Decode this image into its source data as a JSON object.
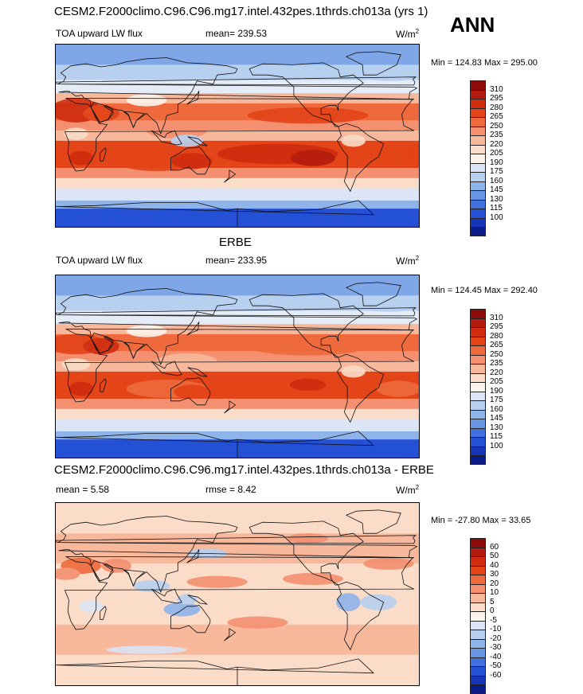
{
  "season": "ANN",
  "panels": [
    {
      "title": "CESM2.F2000climo.C96.C96.mg17.intel.432pes.1thrds.ch013a (yrs 1)",
      "left_label": "TOA upward LW flux",
      "center_label": "mean= 239.53",
      "units": "W/m",
      "units_sup": "2",
      "minmax": "Min = 124.83 Max = 295.00",
      "kind": "abs",
      "colorbar": {
        "levels": [
          "310",
          "295",
          "280",
          "265",
          "250",
          "235",
          "220",
          "205",
          "190",
          "175",
          "160",
          "145",
          "130",
          "115",
          "100"
        ],
        "colors": [
          "#8c0a0a",
          "#b31a0d",
          "#d02c10",
          "#e34418",
          "#ee6a3c",
          "#f49070",
          "#f7b89c",
          "#fadcc8",
          "#fcf3ea",
          "#dbe5f5",
          "#b8d0f0",
          "#8fb4ea",
          "#6895e4",
          "#4070dd",
          "#2450d6",
          "#1534b8",
          "#0c1a8a"
        ]
      }
    },
    {
      "title": "ERBE",
      "left_label": "TOA upward LW flux",
      "center_label": "mean= 233.95",
      "units": "W/m",
      "units_sup": "2",
      "minmax": "Min = 124.45 Max = 292.40",
      "kind": "abs",
      "colorbar": {
        "levels": [
          "310",
          "295",
          "280",
          "265",
          "250",
          "235",
          "220",
          "205",
          "190",
          "175",
          "160",
          "145",
          "130",
          "115",
          "100"
        ],
        "colors": [
          "#8c0a0a",
          "#b31a0d",
          "#d02c10",
          "#e34418",
          "#ee6a3c",
          "#f49070",
          "#f7b89c",
          "#fadcc8",
          "#fcf3ea",
          "#dbe5f5",
          "#b8d0f0",
          "#8fb4ea",
          "#6895e4",
          "#4070dd",
          "#2450d6",
          "#1534b8",
          "#0c1a8a"
        ]
      }
    },
    {
      "title": "CESM2.F2000climo.C96.C96.mg17.intel.432pes.1thrds.ch013a - ERBE",
      "left_label": "mean =   5.58",
      "center_label": "rmse =   8.42",
      "units": "W/m",
      "units_sup": "2",
      "minmax": "Min = -27.80 Max =  33.65",
      "kind": "diff",
      "colorbar": {
        "levels": [
          "60",
          "50",
          "40",
          "30",
          "20",
          "10",
          "5",
          "0",
          "-5",
          "-10",
          "-20",
          "-30",
          "-40",
          "-50",
          "-60"
        ],
        "colors": [
          "#8c0a0a",
          "#b31a0d",
          "#d02c10",
          "#e34418",
          "#ee6a3c",
          "#f49070",
          "#f7b89c",
          "#fadcc8",
          "#fcf3ea",
          "#dbe5f5",
          "#b8d0f0",
          "#8fb4ea",
          "#6895e4",
          "#4070dd",
          "#2450d6",
          "#1534b8",
          "#0c1a8a"
        ]
      }
    }
  ]
}
